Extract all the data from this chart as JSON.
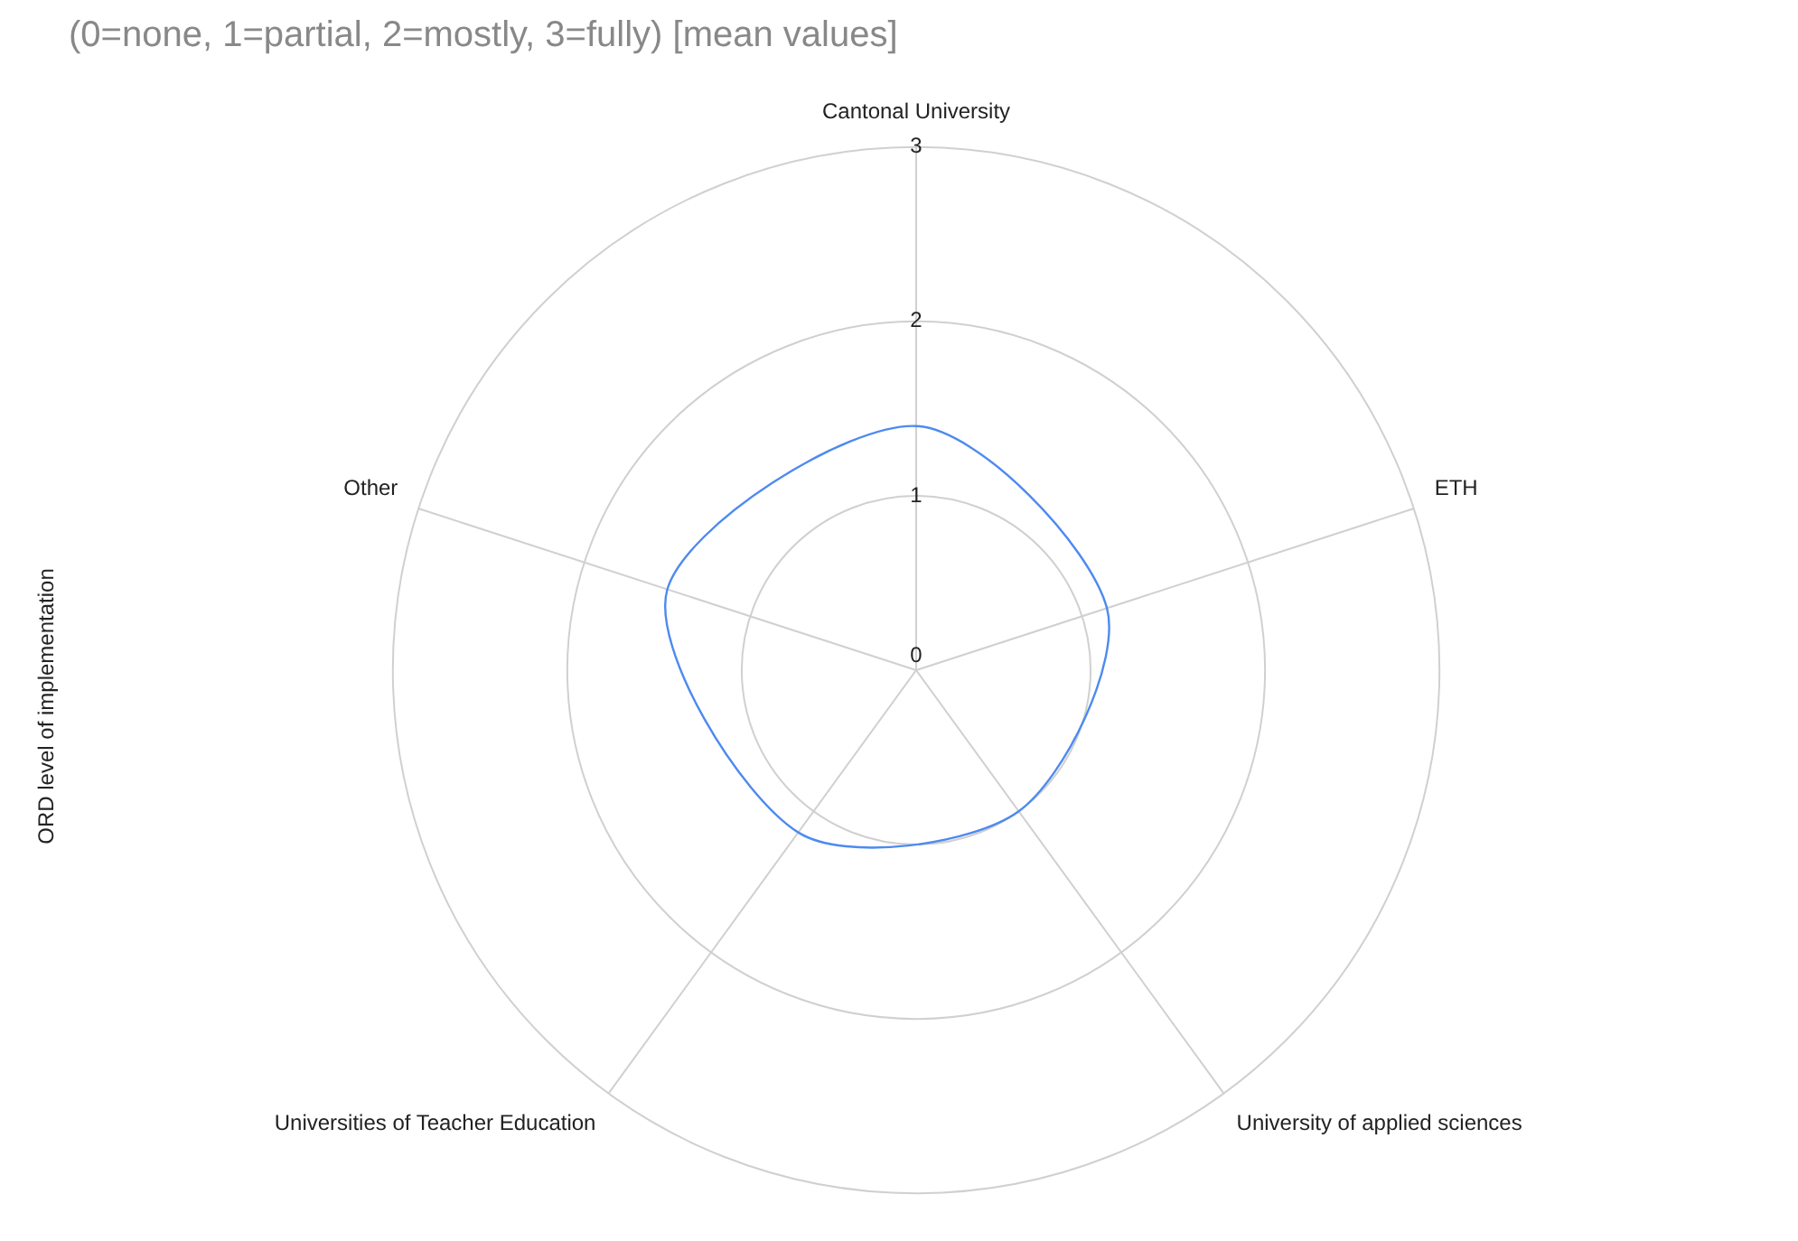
{
  "chart_data": {
    "type": "radar",
    "title": "(0=none, 1=partial, 2=mostly, 3=fully) [mean values]",
    "ylabel": "ORD level of implementation",
    "categories": [
      "Cantonal University",
      "ETH",
      "University of applied sciences",
      "Universities of Teacher Education",
      "Other"
    ],
    "series": [
      {
        "color": "#4d8af0",
        "values": [
          1.4,
          1.15,
          1.0,
          1.15,
          1.5
        ]
      }
    ],
    "ylim": [
      0,
      3
    ],
    "yticks": [
      0,
      1,
      2,
      3
    ],
    "grid": true,
    "legend": false,
    "marker": "none"
  }
}
